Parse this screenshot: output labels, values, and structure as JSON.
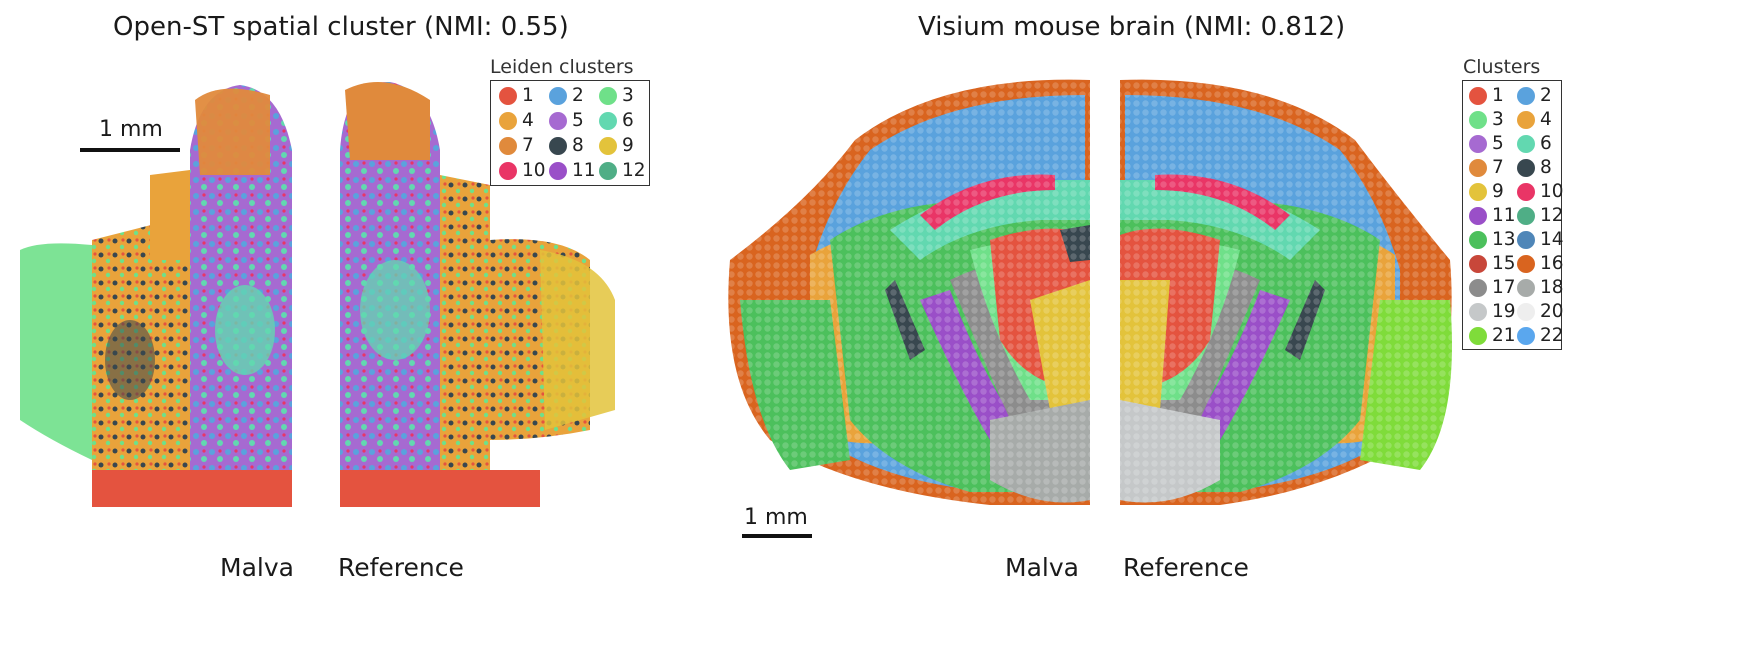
{
  "left": {
    "title": "Open-ST spatial cluster (NMI: 0.55)",
    "scale_label": "1 mm",
    "labels": {
      "malva": "Malva",
      "reference": "Reference"
    },
    "legend": {
      "title": "Leiden clusters",
      "items": [
        {
          "label": "1",
          "color": "#e4533f"
        },
        {
          "label": "2",
          "color": "#5aa2dd"
        },
        {
          "label": "3",
          "color": "#6fe089"
        },
        {
          "label": "4",
          "color": "#e9a33b"
        },
        {
          "label": "5",
          "color": "#a66ad1"
        },
        {
          "label": "6",
          "color": "#62d8b0"
        },
        {
          "label": "7",
          "color": "#e08a3c"
        },
        {
          "label": "8",
          "color": "#38474f"
        },
        {
          "label": "9",
          "color": "#e3c33b"
        },
        {
          "label": "10",
          "color": "#e93566"
        },
        {
          "label": "11",
          "color": "#9a4fc8"
        },
        {
          "label": "12",
          "color": "#4fae86"
        }
      ]
    }
  },
  "right": {
    "title": "Visium mouse brain (NMI: 0.812)",
    "scale_label": "1 mm",
    "labels": {
      "malva": "Malva",
      "reference": "Reference"
    },
    "legend": {
      "title": "Clusters",
      "items": [
        {
          "label": "1",
          "color": "#e4533f"
        },
        {
          "label": "2",
          "color": "#5aa2dd"
        },
        {
          "label": "3",
          "color": "#6fe089"
        },
        {
          "label": "4",
          "color": "#e9a33b"
        },
        {
          "label": "5",
          "color": "#a66ad1"
        },
        {
          "label": "6",
          "color": "#62d8b0"
        },
        {
          "label": "7",
          "color": "#e08a3c"
        },
        {
          "label": "8",
          "color": "#38474f"
        },
        {
          "label": "9",
          "color": "#e3c33b"
        },
        {
          "label": "10",
          "color": "#e93566"
        },
        {
          "label": "11",
          "color": "#9a4fc8"
        },
        {
          "label": "12",
          "color": "#4fae86"
        },
        {
          "label": "13",
          "color": "#4cc05c"
        },
        {
          "label": "14",
          "color": "#4f86b8"
        },
        {
          "label": "15",
          "color": "#c8473a"
        },
        {
          "label": "16",
          "color": "#d9641f"
        },
        {
          "label": "17",
          "color": "#8c8c8c"
        },
        {
          "label": "18",
          "color": "#a7aba9"
        },
        {
          "label": "19",
          "color": "#c5c8c9"
        },
        {
          "label": "20",
          "color": "#eeeeee"
        },
        {
          "label": "21",
          "color": "#7fdc3a"
        },
        {
          "label": "22",
          "color": "#5aa7ee"
        }
      ]
    }
  }
}
